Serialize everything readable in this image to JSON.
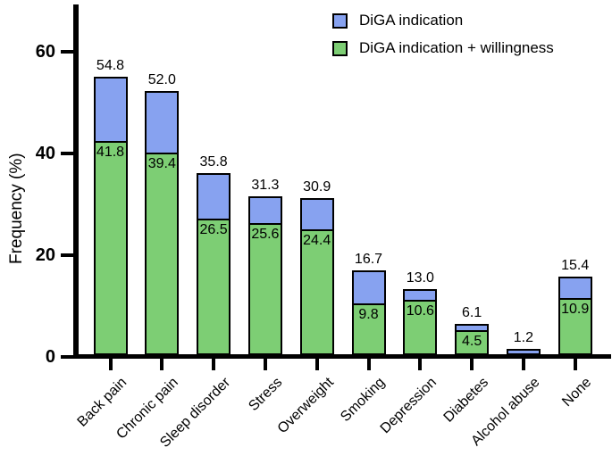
{
  "chart_data": {
    "type": "bar",
    "subtype": "stacked-overlap",
    "title": "",
    "ylabel": "Frequency (%)",
    "xlabel": "",
    "yticks": [
      0,
      20,
      40,
      60
    ],
    "ylim": [
      0,
      70
    ],
    "grid": false,
    "legend_position": "top-right",
    "categories": [
      "Back pain",
      "Chronic pain",
      "Sleep disorder",
      "Stress",
      "Overweight",
      "Smoking",
      "Depression",
      "Diabetes",
      "Alcohol abuse",
      "None"
    ],
    "series": [
      {
        "name": "DiGA indication",
        "color": "#87a2f0",
        "values": [
          54.8,
          52.0,
          35.8,
          31.3,
          30.9,
          16.7,
          13.0,
          6.1,
          1.2,
          15.4
        ]
      },
      {
        "name": "DiGA indication + willingness",
        "color": "#7dce74",
        "values": [
          41.8,
          39.4,
          26.5,
          25.6,
          24.4,
          9.8,
          10.6,
          4.5,
          null,
          10.9
        ]
      }
    ]
  },
  "legend": {
    "items": [
      {
        "label": "DiGA indication",
        "color": "#87a2f0"
      },
      {
        "label": "DiGA indication + willingness",
        "color": "#7dce74"
      }
    ]
  },
  "colors": {
    "axis": "#000000",
    "text": "#000000",
    "background": "#ffffff",
    "bar_border": "#000000"
  }
}
